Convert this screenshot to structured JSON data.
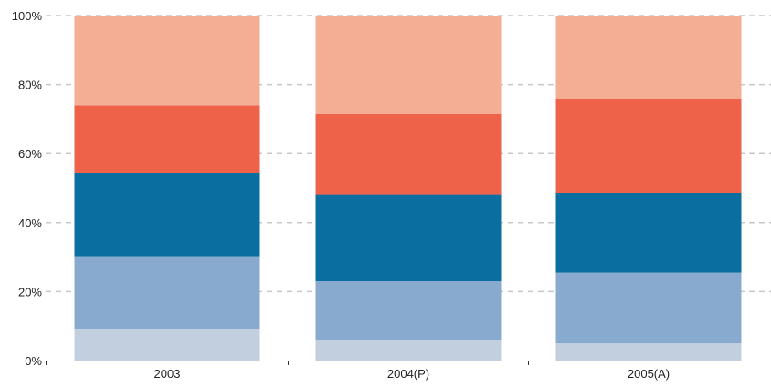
{
  "chart_data": {
    "type": "bar",
    "stacked": true,
    "title": "",
    "xlabel": "",
    "ylabel": "",
    "ylim": [
      0,
      100
    ],
    "y_ticks": [
      "0%",
      "20%",
      "40%",
      "60%",
      "80%",
      "100%"
    ],
    "y_tick_values": [
      0,
      20,
      40,
      60,
      80,
      100
    ],
    "grid": true,
    "legend": "none",
    "categories": [
      "2003",
      "2004(P)",
      "2005(A)"
    ],
    "series": [
      {
        "color": "#c2cfdf",
        "values": [
          9,
          6,
          5
        ]
      },
      {
        "color": "#88aacf",
        "values": [
          21,
          17,
          20.5
        ]
      },
      {
        "color": "#0a6ea0",
        "values": [
          24.5,
          25,
          23
        ]
      },
      {
        "color": "#ee6249",
        "values": [
          19.5,
          23.5,
          27.5
        ]
      },
      {
        "color": "#f4ae94",
        "values": [
          26,
          28.5,
          24
        ]
      }
    ]
  }
}
